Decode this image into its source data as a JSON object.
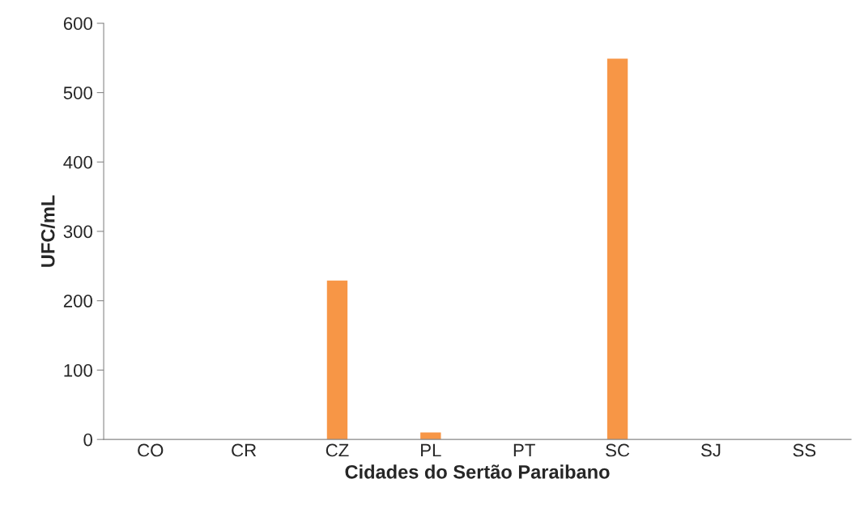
{
  "chart_data": {
    "type": "bar",
    "xlabel": "Cidades do Sertão Paraibano",
    "ylabel": "UFC/mL",
    "categories": [
      "CO",
      "CR",
      "CZ",
      "PL",
      "PT",
      "SC",
      "SJ",
      "SS"
    ],
    "values": [
      0,
      0,
      229,
      10,
      0,
      549,
      0,
      0
    ],
    "color": "#f79646",
    "ylim": [
      0,
      600
    ],
    "yticks": [
      0,
      100,
      200,
      300,
      400,
      500,
      600
    ],
    "grid": false,
    "legend": false
  }
}
